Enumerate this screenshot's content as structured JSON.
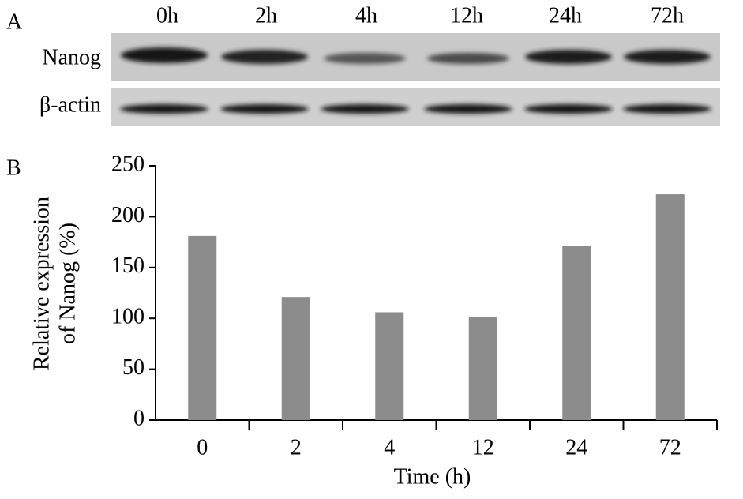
{
  "panel_labels": [
    "A",
    "B"
  ],
  "blot": {
    "lanes": [
      "0h",
      "2h",
      "4h",
      "12h",
      "24h",
      "72h"
    ],
    "rows": [
      "Nanog",
      "β-actin"
    ]
  },
  "chart_data": {
    "type": "bar",
    "categories": [
      "0",
      "2",
      "4",
      "12",
      "24",
      "72"
    ],
    "values": [
      181,
      121,
      106,
      101,
      171,
      222
    ],
    "color": "#8c8c8c",
    "ylim": [
      0,
      250
    ],
    "yticks": [
      0,
      50,
      100,
      150,
      200,
      250
    ],
    "ylabel": [
      "Relative expression",
      "of Nanog (%)"
    ],
    "xlabel": "Time (h)"
  }
}
